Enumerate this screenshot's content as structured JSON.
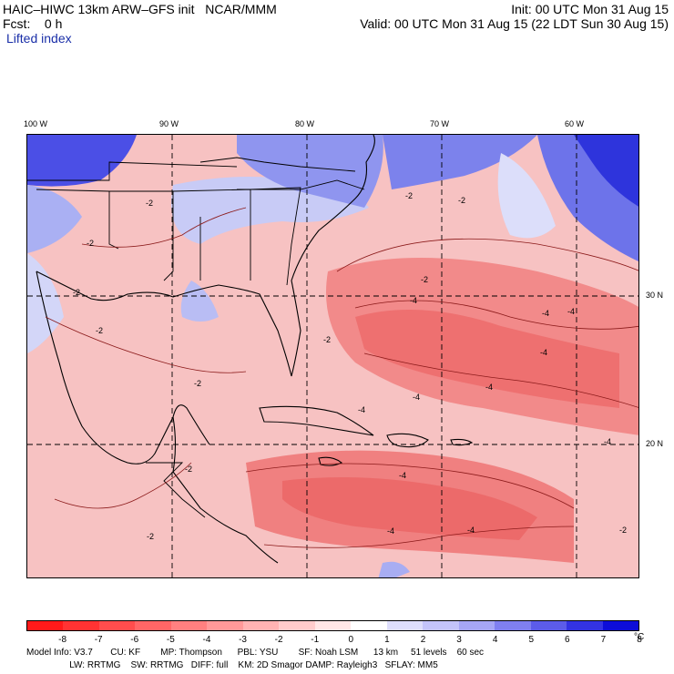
{
  "header": {
    "title": "HAIC–HIWC 13km ARW–GFS init   NCAR/MMM",
    "init": "Init: 00 UTC Mon 31 Aug 15",
    "fcst": "Fcst:    0 h",
    "valid": "Valid: 00 UTC Mon 31 Aug 15 (22 LDT Sun 30 Aug 15)",
    "field": "Lifted index"
  },
  "map": {
    "lon_labels": [
      "100 W",
      "90 W",
      "80 W",
      "70 W",
      "60 W"
    ],
    "lat_labels": [
      "30 N",
      "20 N"
    ],
    "contour_labels": [
      "-2",
      "-4"
    ]
  },
  "colorbar": {
    "ticks": [
      "-8",
      "-7",
      "-6",
      "-5",
      "-4",
      "-3",
      "-2",
      "-1",
      "0",
      "1",
      "2",
      "3",
      "4",
      "5",
      "6",
      "7",
      "8"
    ],
    "unit": "°C",
    "colors": [
      "#ff1a1a",
      "#ff3333",
      "#ff4d4d",
      "#ff6666",
      "#ff8080",
      "#ff9999",
      "#ffb3b3",
      "#ffcccc",
      "#ffe6e6",
      "#ffffff",
      "#dedefc",
      "#c4c4fa",
      "#a6a6f5",
      "#8080f0",
      "#5c5cea",
      "#3333e3",
      "#0d0dd9"
    ]
  },
  "footer": {
    "line1": "Model Info: V3.7       CU: KF        MP: Thompson      PBL: YSU        SF: Noah LSM      13 km     51 levels    60 sec",
    "line2": "                 LW: RRTMG    SW: RRTMG   DIFF: full    KM: 2D Smagor DAMP: Rayleigh3   SFLAY: MM5"
  }
}
